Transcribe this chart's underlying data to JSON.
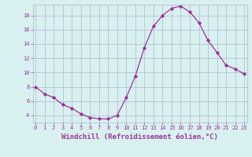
{
  "x": [
    0,
    1,
    2,
    3,
    4,
    5,
    6,
    7,
    8,
    9,
    10,
    11,
    12,
    13,
    14,
    15,
    16,
    17,
    18,
    19,
    20,
    21,
    22,
    23
  ],
  "y": [
    8.0,
    7.0,
    6.5,
    5.5,
    5.0,
    4.2,
    3.7,
    3.5,
    3.5,
    4.0,
    6.5,
    9.5,
    13.5,
    16.5,
    18.0,
    19.0,
    19.3,
    18.5,
    17.0,
    14.5,
    12.8,
    11.0,
    10.5,
    9.8
  ],
  "line_color": "#993399",
  "marker": "D",
  "markersize": 2.2,
  "linewidth": 0.9,
  "xlabel": "Windchill (Refroidissement éolien,°C)",
  "xlabel_fontsize": 6.5,
  "ytick_labels": [
    "4",
    "6",
    "8",
    "10",
    "12",
    "14",
    "16",
    "18"
  ],
  "yticks": [
    4,
    6,
    8,
    10,
    12,
    14,
    16,
    18
  ],
  "xticks": [
    0,
    1,
    2,
    3,
    4,
    5,
    6,
    7,
    8,
    9,
    10,
    11,
    12,
    13,
    14,
    15,
    16,
    17,
    18,
    19,
    20,
    21,
    22,
    23
  ],
  "xlim": [
    -0.3,
    23.3
  ],
  "ylim": [
    3.0,
    19.5
  ],
  "bg_color": "#d8f0f0",
  "grid_color": "#b0b8cc",
  "line_purple": "#993399",
  "tick_fontsize": 5.0
}
